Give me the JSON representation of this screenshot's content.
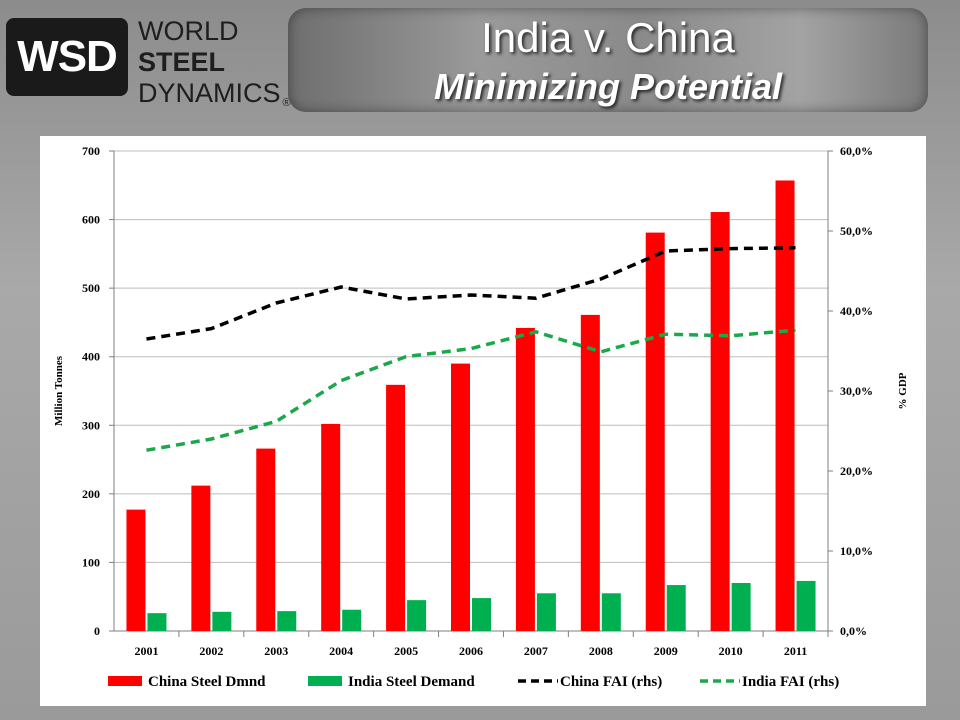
{
  "logo": {
    "abbr": "WSD",
    "line1": "WORLD",
    "line2": "STEEL",
    "line3": "DYNAMICS",
    "reg": "®"
  },
  "title": {
    "line1": "India v. China",
    "line2": "Minimizing Potential"
  },
  "colors": {
    "china_bar": "#ff0000",
    "india_bar": "#00b050",
    "china_line": "#000000",
    "india_line": "#1aa84a"
  },
  "chart_data": {
    "type": "bar",
    "categories": [
      "2001",
      "2002",
      "2003",
      "2004",
      "2005",
      "2006",
      "2007",
      "2008",
      "2009",
      "2010",
      "2011"
    ],
    "series": [
      {
        "name": "China Steel Dmnd",
        "type": "bar",
        "axis": "left",
        "values": [
          177,
          212,
          266,
          302,
          359,
          390,
          442,
          461,
          581,
          611,
          657
        ]
      },
      {
        "name": "India Steel Demand",
        "type": "bar",
        "axis": "left",
        "values": [
          26,
          28,
          29,
          31,
          45,
          48,
          55,
          55,
          67,
          70,
          73
        ]
      },
      {
        "name": "China FAI (rhs)",
        "type": "line",
        "style": "dashed",
        "axis": "right",
        "values": [
          36.5,
          37.8,
          41.0,
          43.0,
          41.5,
          42.0,
          41.6,
          44.0,
          47.5,
          47.8,
          47.9
        ]
      },
      {
        "name": "India FAI (rhs)",
        "type": "line",
        "style": "dashed",
        "axis": "right",
        "values": [
          22.6,
          24.0,
          26.2,
          31.3,
          34.3,
          35.3,
          37.4,
          34.9,
          37.1,
          36.9,
          37.6
        ]
      }
    ],
    "ylabel": "Million Tonnes",
    "y2label": "% GDP",
    "ylim": [
      0,
      700
    ],
    "y2lim": [
      0,
      60
    ],
    "yticks": [
      "0",
      "100",
      "200",
      "300",
      "400",
      "500",
      "600",
      "700"
    ],
    "y2ticks": [
      "0,0%",
      "10,0%",
      "20,0%",
      "30,0%",
      "40,0%",
      "50,0%",
      "60,0%"
    ],
    "grid": "horizontal",
    "legend_position": "bottom"
  }
}
